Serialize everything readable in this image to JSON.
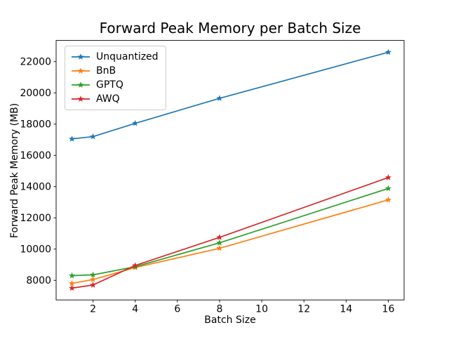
{
  "figure": {
    "background": "#ffffff",
    "axis_color": "#000000"
  },
  "chart_data": {
    "type": "line",
    "title": "Forward Peak Memory per Batch Size",
    "xlabel": "Batch Size",
    "ylabel": "Forward Peak Memory (MB)",
    "x": [
      1,
      2,
      4,
      8,
      16
    ],
    "series": [
      {
        "name": "Unquantized",
        "color": "#1f77b4",
        "values": [
          17050,
          17200,
          18050,
          19650,
          22600
        ]
      },
      {
        "name": "BnB",
        "color": "#ff7f0e",
        "values": [
          7800,
          8050,
          8820,
          10050,
          13150
        ]
      },
      {
        "name": "GPTQ",
        "color": "#2ca02c",
        "values": [
          8300,
          8350,
          8870,
          10400,
          13880
        ]
      },
      {
        "name": "AWQ",
        "color": "#d62728",
        "values": [
          7500,
          7700,
          8950,
          10750,
          14580
        ]
      }
    ],
    "xticks": [
      2,
      4,
      6,
      8,
      10,
      12,
      14,
      16
    ],
    "yticks": [
      8000,
      10000,
      12000,
      14000,
      16000,
      18000,
      20000,
      22000
    ],
    "xlim": [
      0.25,
      16.75
    ],
    "ylim": [
      6745,
      23355
    ],
    "grid": false,
    "legend_position": "upper-left",
    "marker": "star"
  }
}
